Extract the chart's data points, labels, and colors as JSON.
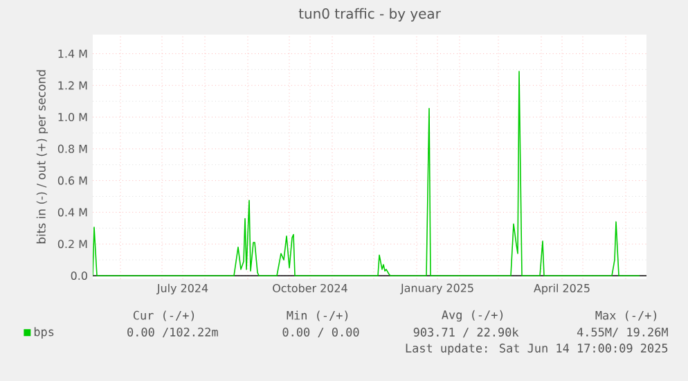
{
  "chart_data": {
    "type": "line",
    "title": "tun0 traffic - by year",
    "ylabel": "bits in (-) / out (+) per second",
    "x": [
      "2024-05-12",
      "2024-05-13",
      "2024-05-15",
      "2024-08-22",
      "2024-08-25",
      "2024-08-27",
      "2024-08-29",
      "2024-08-30",
      "2024-08-31",
      "2024-09-02",
      "2024-09-03",
      "2024-09-05",
      "2024-09-06",
      "2024-09-08",
      "2024-09-09",
      "2024-09-22",
      "2024-09-25",
      "2024-09-27",
      "2024-09-29",
      "2024-10-01",
      "2024-10-03",
      "2024-10-04",
      "2024-10-05",
      "2024-12-04",
      "2024-12-05",
      "2024-12-07",
      "2024-12-08",
      "2024-12-09",
      "2024-12-10",
      "2024-12-12",
      "2024-12-13",
      "2025-01-08",
      "2025-01-10",
      "2025-01-11",
      "2025-03-10",
      "2025-03-12",
      "2025-03-14",
      "2025-03-15",
      "2025-03-16",
      "2025-03-18",
      "2025-03-31",
      "2025-04-02",
      "2025-04-03",
      "2025-05-22",
      "2025-05-24",
      "2025-05-25",
      "2025-05-27",
      "2025-06-11"
    ],
    "series": [
      {
        "name": "bps",
        "color": "#00cc00",
        "values": [
          0,
          306000,
          0,
          0,
          180000,
          40000,
          90000,
          360000,
          40000,
          475000,
          30000,
          210000,
          210000,
          20000,
          0,
          0,
          140000,
          100000,
          250000,
          50000,
          240000,
          260000,
          0,
          0,
          130000,
          40000,
          70000,
          30000,
          40000,
          10000,
          0,
          0,
          1055000,
          0,
          0,
          326000,
          195000,
          140000,
          1288000,
          0,
          0,
          218000,
          0,
          0,
          100000,
          340000,
          0,
          0
        ]
      }
    ],
    "xlim": [
      "2024-05-12",
      "2025-06-16"
    ],
    "xticks": [
      {
        "value": "2024-06-01",
        "label": null
      },
      {
        "value": "2024-07-01",
        "label": null
      },
      {
        "value": "2024-08-01",
        "label": null
      },
      {
        "value": "2024-09-01",
        "label": null
      },
      {
        "value": "2024-10-01",
        "label": null
      },
      {
        "value": "2024-11-01",
        "label": null
      },
      {
        "value": "2024-12-01",
        "label": null
      },
      {
        "value": "2025-01-01",
        "label": null
      },
      {
        "value": "2025-02-01",
        "label": null
      },
      {
        "value": "2025-03-01",
        "label": null
      },
      {
        "value": "2025-04-01",
        "label": null
      },
      {
        "value": "2025-05-01",
        "label": null
      },
      {
        "value": "2025-06-01",
        "label": null
      },
      {
        "value": "2024-07-16",
        "label": "July 2024"
      },
      {
        "value": "2024-10-16",
        "label": "October 2024"
      },
      {
        "value": "2025-01-16",
        "label": "January 2025"
      },
      {
        "value": "2025-04-16",
        "label": "April 2025"
      }
    ],
    "ylim": [
      -20000,
      1520000
    ],
    "yticks": [
      {
        "value": 0,
        "label": "0.0"
      },
      {
        "value": 200000,
        "label": "0.2 M"
      },
      {
        "value": 400000,
        "label": "0.4 M"
      },
      {
        "value": 600000,
        "label": "0.6 M"
      },
      {
        "value": 800000,
        "label": "0.8 M"
      },
      {
        "value": 1000000,
        "label": "1.0 M"
      },
      {
        "value": 1200000,
        "label": "1.2 M"
      },
      {
        "value": 1400000,
        "label": "1.4 M"
      }
    ],
    "grid": true,
    "legend": "bottom left",
    "marker": "none",
    "line_style": "solid",
    "annotations": [
      "Cur (-/+)",
      "Min (-/+)",
      "Avg (-/+)",
      "Max (-/+)",
      "0.00 /102.22m",
      "0.00 /  0.00",
      "903.71 / 22.90k",
      "4.55M/ 19.26M",
      "Last update: Sat Jun 14 17:00:09 2025"
    ]
  }
}
